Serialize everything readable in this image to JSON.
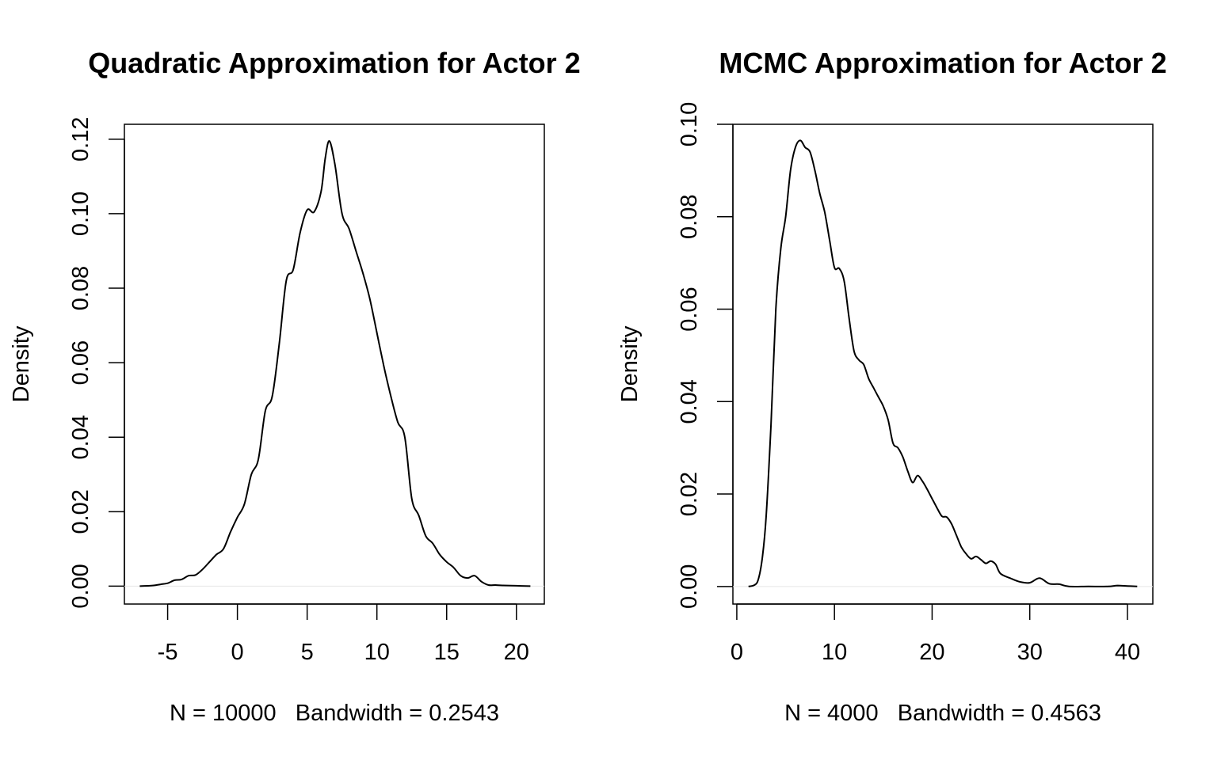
{
  "chart_data": [
    {
      "type": "line",
      "title": "Quadratic Approximation for Actor 2",
      "xlabel": "N = 10000   Bandwidth = 0.2543",
      "ylabel": "Density",
      "xlim": [
        -8.1,
        22.0
      ],
      "ylim": [
        -0.0048,
        0.124
      ],
      "xticks": [
        -5,
        0,
        5,
        10,
        15,
        20
      ],
      "xtick_labels": [
        "-5",
        "0",
        "5",
        "10",
        "15",
        "20"
      ],
      "yticks": [
        0,
        0.02,
        0.04,
        0.06,
        0.08,
        0.1,
        0.12
      ],
      "ytick_labels": [
        "0.00",
        "0.02",
        "0.04",
        "0.06",
        "0.08",
        "0.10",
        "0.12"
      ],
      "grid": false,
      "x": [
        -7,
        -6,
        -5.5,
        -5,
        -4.5,
        -4,
        -3.5,
        -3,
        -2.5,
        -2,
        -1.5,
        -1,
        -0.5,
        0,
        0.5,
        1,
        1.5,
        2,
        2.5,
        3,
        3.5,
        4,
        4.5,
        5,
        5.5,
        6,
        6.3,
        6.6,
        7,
        7.5,
        8,
        8.5,
        9,
        9.5,
        10,
        10.5,
        11,
        11.5,
        12,
        12.5,
        13,
        13.5,
        14,
        14.5,
        15,
        15.5,
        16,
        16.5,
        17,
        17.5,
        18,
        18.5,
        19,
        20,
        21
      ],
      "values": [
        0.0,
        0.0002,
        0.0005,
        0.0008,
        0.0016,
        0.0018,
        0.0028,
        0.003,
        0.0045,
        0.0065,
        0.0085,
        0.01,
        0.0145,
        0.0185,
        0.022,
        0.03,
        0.034,
        0.047,
        0.051,
        0.065,
        0.082,
        0.085,
        0.095,
        0.101,
        0.1005,
        0.106,
        0.115,
        0.1195,
        0.113,
        0.1,
        0.096,
        0.09,
        0.084,
        0.077,
        0.068,
        0.059,
        0.051,
        0.044,
        0.04,
        0.0235,
        0.019,
        0.0135,
        0.0115,
        0.0085,
        0.0065,
        0.005,
        0.0028,
        0.0022,
        0.0028,
        0.0012,
        0.0003,
        0.0003,
        0.0002,
        0.0001,
        0.0
      ]
    },
    {
      "type": "line",
      "title": "MCMC Approximation for Actor 2",
      "xlabel": "N = 4000   Bandwidth = 0.4563",
      "ylabel": "Density",
      "xlim": [
        -0.4,
        42.6
      ],
      "ylim": [
        -0.0038,
        0.1
      ],
      "xticks": [
        0,
        10,
        20,
        30,
        40
      ],
      "xtick_labels": [
        "0",
        "10",
        "20",
        "30",
        "40"
      ],
      "yticks": [
        0,
        0.02,
        0.04,
        0.06,
        0.08,
        0.1
      ],
      "ytick_labels": [
        "0.00",
        "0.02",
        "0.04",
        "0.06",
        "0.08",
        "0.10"
      ],
      "grid": false,
      "x": [
        1.2,
        1.8,
        2.2,
        2.6,
        3,
        3.5,
        4,
        4.5,
        5,
        5.5,
        6,
        6.5,
        7,
        7.5,
        8,
        8.5,
        9,
        9.5,
        10,
        10.5,
        11,
        11.5,
        12,
        12.5,
        13,
        13.5,
        14,
        14.5,
        15,
        15.5,
        16,
        16.5,
        17,
        17.5,
        18,
        18.5,
        19,
        19.5,
        20,
        20.5,
        21,
        21.5,
        22,
        22.5,
        23,
        23.5,
        24,
        24.5,
        25,
        25.5,
        26,
        26.5,
        27,
        28,
        29,
        30,
        31,
        32,
        33,
        34,
        36,
        38,
        39,
        40,
        41
      ],
      "values": [
        0.0,
        0.0003,
        0.0015,
        0.006,
        0.015,
        0.035,
        0.06,
        0.073,
        0.08,
        0.09,
        0.095,
        0.0965,
        0.095,
        0.094,
        0.09,
        0.085,
        0.081,
        0.075,
        0.069,
        0.0688,
        0.066,
        0.058,
        0.051,
        0.049,
        0.048,
        0.045,
        0.043,
        0.041,
        0.039,
        0.036,
        0.031,
        0.03,
        0.028,
        0.025,
        0.0225,
        0.024,
        0.0228,
        0.021,
        0.019,
        0.017,
        0.0152,
        0.015,
        0.0135,
        0.011,
        0.0085,
        0.007,
        0.006,
        0.0065,
        0.0058,
        0.005,
        0.0055,
        0.0048,
        0.0028,
        0.0018,
        0.001,
        0.0008,
        0.0018,
        0.0006,
        0.0005,
        0.0,
        0.0,
        0.0,
        0.0002,
        0.0001,
        0.0
      ]
    }
  ]
}
